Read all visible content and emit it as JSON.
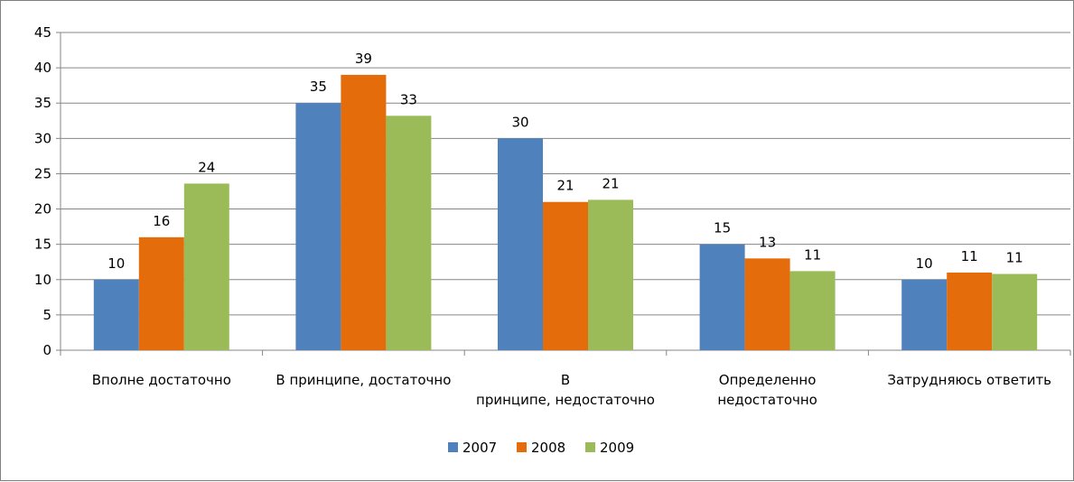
{
  "chart_data": {
    "type": "bar",
    "categories": [
      [
        "Вполне достаточно"
      ],
      [
        "В принципе, достаточно"
      ],
      [
        "В",
        "принципе, недостаточно"
      ],
      [
        "Определенно",
        "недостаточно"
      ],
      [
        "Затрудняюсь ответить"
      ]
    ],
    "series": [
      {
        "name": "2007",
        "color": "#4f81bd",
        "values": [
          10,
          35,
          30,
          15,
          10
        ],
        "labels": [
          "10",
          "35",
          "30",
          "15",
          "10"
        ]
      },
      {
        "name": "2008",
        "color": "#e46c0a",
        "values": [
          16,
          39,
          21,
          13,
          11
        ],
        "labels": [
          "16",
          "39",
          "21",
          "13",
          "11"
        ]
      },
      {
        "name": "2009",
        "color": "#9bbb59",
        "values": [
          23.6,
          33.2,
          21.3,
          11.2,
          10.8
        ],
        "labels": [
          "24",
          "33",
          "21",
          "11",
          "11"
        ]
      }
    ],
    "ylim": [
      0,
      45
    ],
    "yticks": [
      0,
      5,
      10,
      15,
      20,
      25,
      30,
      35,
      40,
      45
    ],
    "grid": true,
    "legend": "bottom",
    "title": "",
    "xlabel": "",
    "ylabel": ""
  }
}
